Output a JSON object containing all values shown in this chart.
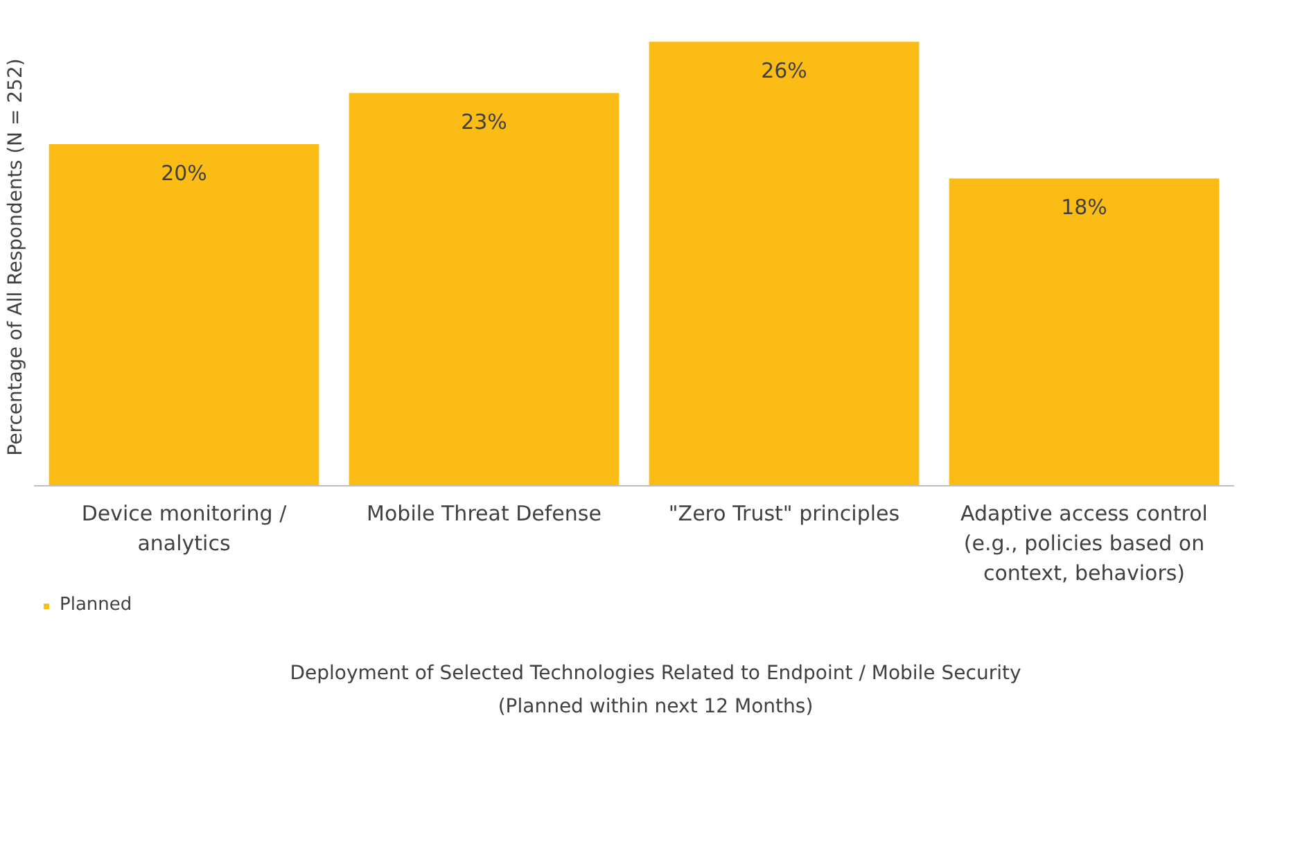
{
  "chart_data": {
    "type": "bar",
    "categories": [
      "Device monitoring / analytics",
      "Mobile Threat Defense",
      "\"Zero Trust\" principles",
      "Adaptive access control (e.g., policies based on context, behaviors)"
    ],
    "series": [
      {
        "name": "Planned",
        "color": "#fbbc16",
        "values": [
          20,
          23,
          26,
          18
        ],
        "value_labels": [
          "20%",
          "23%",
          "26%",
          "18%"
        ]
      }
    ],
    "ylabel": "Percentage of All Respondents (N = 252)",
    "xlabel": "Deployment of Selected Technologies Related to Endpoint / Mobile Security\n(Planned within next 12 Months)",
    "tick_labels": "x",
    "legend": "bottom left"
  }
}
